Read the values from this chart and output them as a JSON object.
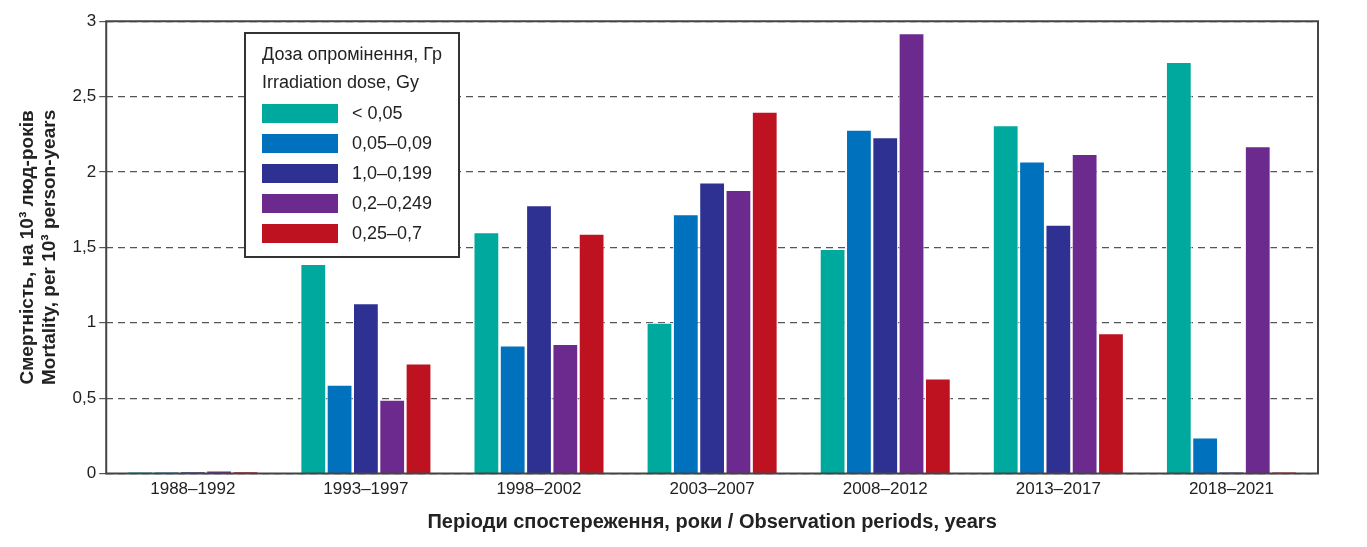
{
  "chart_data": {
    "type": "bar",
    "categories": [
      "1988–1992",
      "1993–1997",
      "1998–2002",
      "2003–2007",
      "2008–2012",
      "2013–2017",
      "2018–2021"
    ],
    "xlabel": "Періоди спостереження, роки / Observation periods, years",
    "ylabel": "Смертність, на 10³ люд-років\nMortality, per 10³ person-years",
    "legend_title": "Доза опромінення, Гр\nIrradiation dose, Gy",
    "ylim": [
      0,
      3
    ],
    "yticks": [
      0,
      {
        "value": 0.5,
        "label": "0,5"
      },
      1,
      {
        "value": 1.5,
        "label": "1,5"
      },
      2,
      {
        "value": 2.5,
        "label": "2,5"
      },
      3
    ],
    "grid": "y",
    "legend": "top left",
    "series": [
      {
        "name": "< 0,05",
        "color": "#00a99d",
        "values": [
          0.01,
          1.39,
          1.6,
          1.0,
          1.49,
          2.31,
          2.73
        ]
      },
      {
        "name": "0,05–0,09",
        "color": "#0071bc",
        "values": [
          0.01,
          0.59,
          0.85,
          1.72,
          2.28,
          2.07,
          0.24
        ]
      },
      {
        "name": "1,0–0,199",
        "color": "#2e3192",
        "values": [
          0.015,
          1.13,
          1.78,
          1.93,
          2.23,
          1.65,
          0.01
        ]
      },
      {
        "name": "0,2–0,249",
        "color": "#6d2a8e",
        "values": [
          0.02,
          0.49,
          0.86,
          1.88,
          2.92,
          2.12,
          2.17
        ]
      },
      {
        "name": "0,25–0,7",
        "color": "#be1220",
        "values": [
          0.015,
          0.73,
          1.59,
          2.4,
          0.63,
          0.93,
          0.01
        ]
      }
    ]
  }
}
